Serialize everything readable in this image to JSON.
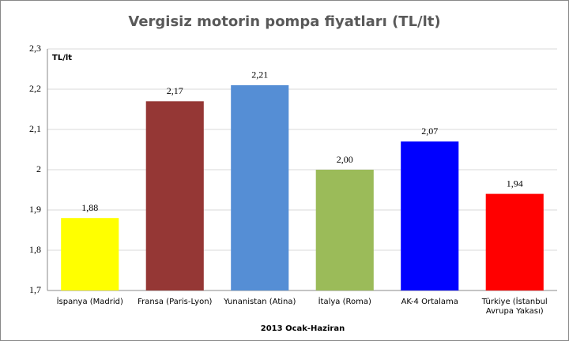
{
  "chart_data": {
    "type": "bar",
    "title": "Vergisiz motorin pompa fiyatları (TL/lt)",
    "y_label": "TL/lt",
    "x_label": "2013  Ocak-Haziran",
    "categories": [
      "İspanya (Madrid)",
      "Fransa (Paris-Lyon)",
      "Yunanistan (Atina)",
      "İtalya (Roma)",
      "AK-4 Ortalama",
      "Türkiye (İstanbul\nAvrupa Yakası)"
    ],
    "values": [
      1.88,
      2.17,
      2.21,
      2.0,
      2.07,
      1.94
    ],
    "value_labels": [
      "1,88",
      "2,17",
      "2,21",
      "2,00",
      "2,07",
      "1,94"
    ],
    "colors": [
      "#ffff00",
      "#953735",
      "#558ed5",
      "#9bbb59",
      "#0000ff",
      "#ff0000"
    ],
    "ylim": [
      1.7,
      2.3
    ],
    "yticks": [
      {
        "value": 1.7,
        "label": "1,7"
      },
      {
        "value": 1.8,
        "label": "1,8"
      },
      {
        "value": 1.9,
        "label": "1,9"
      },
      2,
      {
        "value": 2.1,
        "label": "2,1"
      },
      {
        "value": 2.2,
        "label": "2,2"
      },
      {
        "value": 2.3,
        "label": "2,3"
      }
    ],
    "grid": true
  }
}
